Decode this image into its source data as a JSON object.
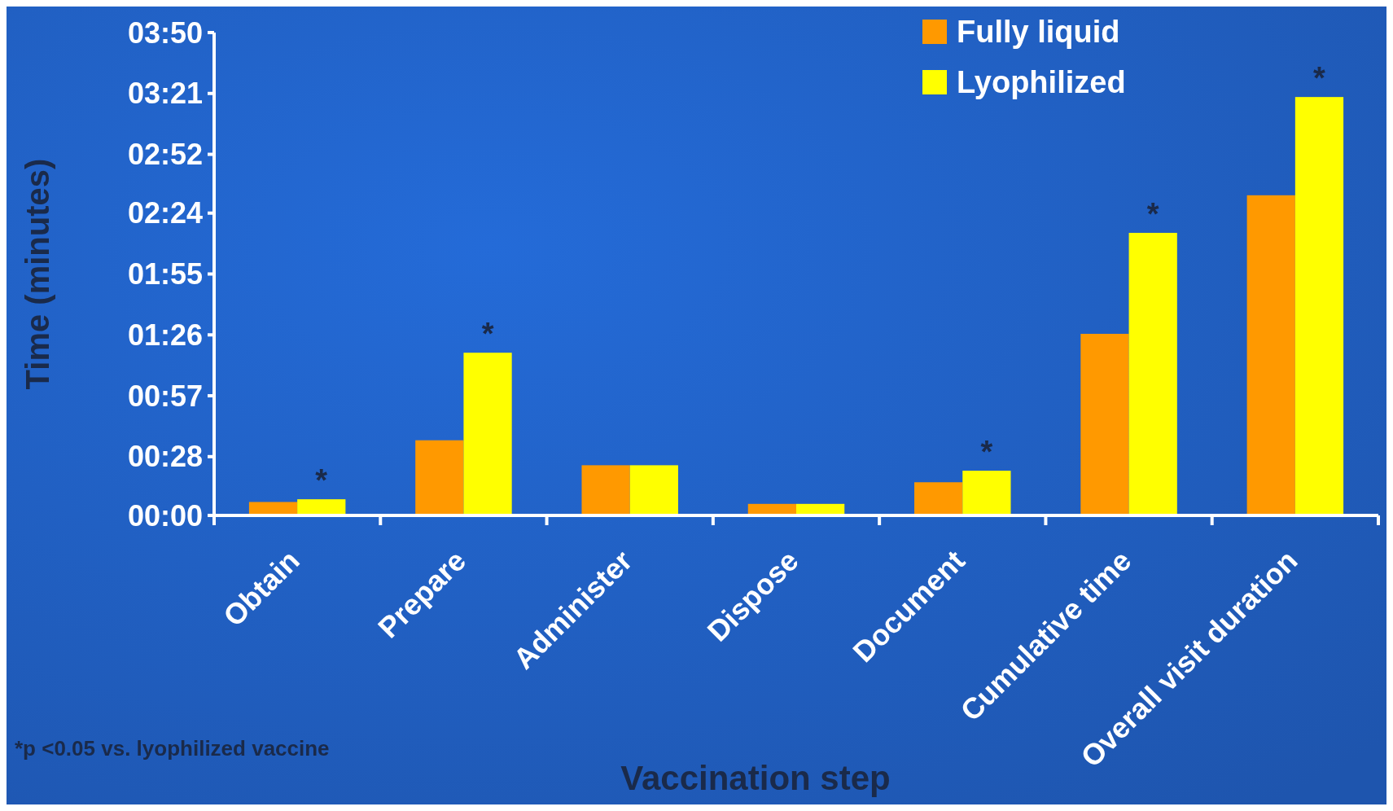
{
  "chart_data": {
    "type": "bar",
    "xlabel": "Vaccination step",
    "ylabel": "Time (minutes)",
    "categories": [
      "Obtain",
      "Prepare",
      "Administer",
      "Dispose",
      "Document",
      "Cumulative time",
      "Overall visit duration"
    ],
    "series": [
      {
        "name": "Fully liquid",
        "color": "#ff9900",
        "values": [
          6.4,
          35.8,
          23.9,
          5.5,
          15.8,
          86.5,
          152.5
        ]
      },
      {
        "name": "Lyophilized",
        "color": "#ffff00",
        "values": [
          7.7,
          77.5,
          23.9,
          5.5,
          21.3,
          134.6,
          199.3
        ]
      }
    ],
    "ylim": [
      0,
      230
    ],
    "yticks": [
      {
        "value": 0,
        "label": "00:00"
      },
      {
        "value": 28,
        "label": "00:28"
      },
      {
        "value": 57,
        "label": "00:57"
      },
      {
        "value": 86,
        "label": "01:26"
      },
      {
        "value": 115,
        "label": "01:55"
      },
      {
        "value": 144,
        "label": "02:24"
      },
      {
        "value": 172,
        "label": "02:52"
      },
      {
        "value": 201,
        "label": "03:21"
      },
      {
        "value": 230,
        "label": "03:50"
      }
    ],
    "legend": "top right",
    "grid": false,
    "annotations": [
      {
        "text": "*",
        "x": "Obtain",
        "y": 7.7
      },
      {
        "text": "*",
        "x": "Prepare",
        "y": 77.5
      },
      {
        "text": "*",
        "x": "Document",
        "y": 21.3
      },
      {
        "text": "*",
        "x": "Cumulative time",
        "y": 134.6
      },
      {
        "text": "*",
        "x": "Overall visit duration",
        "y": 199.3
      },
      "*p <0.05 vs. lyophilized vaccine"
    ]
  }
}
